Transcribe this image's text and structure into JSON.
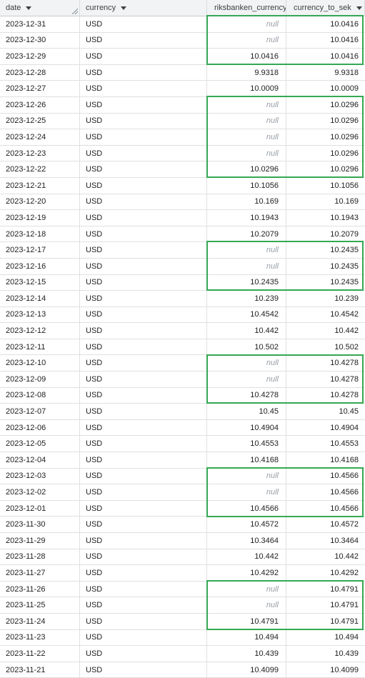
{
  "columns": {
    "date": "date",
    "currency": "currency",
    "riksbanken": "riksbanken_currency",
    "to_sek": "currency_to_sek"
  },
  "null_text": "null",
  "rows": [
    {
      "date": "2023-12-31",
      "currency": "USD",
      "riksbanken": null,
      "to_sek": "10.0416"
    },
    {
      "date": "2023-12-30",
      "currency": "USD",
      "riksbanken": null,
      "to_sek": "10.0416"
    },
    {
      "date": "2023-12-29",
      "currency": "USD",
      "riksbanken": "10.0416",
      "to_sek": "10.0416"
    },
    {
      "date": "2023-12-28",
      "currency": "USD",
      "riksbanken": "9.9318",
      "to_sek": "9.9318"
    },
    {
      "date": "2023-12-27",
      "currency": "USD",
      "riksbanken": "10.0009",
      "to_sek": "10.0009"
    },
    {
      "date": "2023-12-26",
      "currency": "USD",
      "riksbanken": null,
      "to_sek": "10.0296"
    },
    {
      "date": "2023-12-25",
      "currency": "USD",
      "riksbanken": null,
      "to_sek": "10.0296"
    },
    {
      "date": "2023-12-24",
      "currency": "USD",
      "riksbanken": null,
      "to_sek": "10.0296"
    },
    {
      "date": "2023-12-23",
      "currency": "USD",
      "riksbanken": null,
      "to_sek": "10.0296"
    },
    {
      "date": "2023-12-22",
      "currency": "USD",
      "riksbanken": "10.0296",
      "to_sek": "10.0296"
    },
    {
      "date": "2023-12-21",
      "currency": "USD",
      "riksbanken": "10.1056",
      "to_sek": "10.1056"
    },
    {
      "date": "2023-12-20",
      "currency": "USD",
      "riksbanken": "10.169",
      "to_sek": "10.169"
    },
    {
      "date": "2023-12-19",
      "currency": "USD",
      "riksbanken": "10.1943",
      "to_sek": "10.1943"
    },
    {
      "date": "2023-12-18",
      "currency": "USD",
      "riksbanken": "10.2079",
      "to_sek": "10.2079"
    },
    {
      "date": "2023-12-17",
      "currency": "USD",
      "riksbanken": null,
      "to_sek": "10.2435"
    },
    {
      "date": "2023-12-16",
      "currency": "USD",
      "riksbanken": null,
      "to_sek": "10.2435"
    },
    {
      "date": "2023-12-15",
      "currency": "USD",
      "riksbanken": "10.2435",
      "to_sek": "10.2435"
    },
    {
      "date": "2023-12-14",
      "currency": "USD",
      "riksbanken": "10.239",
      "to_sek": "10.239"
    },
    {
      "date": "2023-12-13",
      "currency": "USD",
      "riksbanken": "10.4542",
      "to_sek": "10.4542"
    },
    {
      "date": "2023-12-12",
      "currency": "USD",
      "riksbanken": "10.442",
      "to_sek": "10.442"
    },
    {
      "date": "2023-12-11",
      "currency": "USD",
      "riksbanken": "10.502",
      "to_sek": "10.502"
    },
    {
      "date": "2023-12-10",
      "currency": "USD",
      "riksbanken": null,
      "to_sek": "10.4278"
    },
    {
      "date": "2023-12-09",
      "currency": "USD",
      "riksbanken": null,
      "to_sek": "10.4278"
    },
    {
      "date": "2023-12-08",
      "currency": "USD",
      "riksbanken": "10.4278",
      "to_sek": "10.4278"
    },
    {
      "date": "2023-12-07",
      "currency": "USD",
      "riksbanken": "10.45",
      "to_sek": "10.45"
    },
    {
      "date": "2023-12-06",
      "currency": "USD",
      "riksbanken": "10.4904",
      "to_sek": "10.4904"
    },
    {
      "date": "2023-12-05",
      "currency": "USD",
      "riksbanken": "10.4553",
      "to_sek": "10.4553"
    },
    {
      "date": "2023-12-04",
      "currency": "USD",
      "riksbanken": "10.4168",
      "to_sek": "10.4168"
    },
    {
      "date": "2023-12-03",
      "currency": "USD",
      "riksbanken": null,
      "to_sek": "10.4566"
    },
    {
      "date": "2023-12-02",
      "currency": "USD",
      "riksbanken": null,
      "to_sek": "10.4566"
    },
    {
      "date": "2023-12-01",
      "currency": "USD",
      "riksbanken": "10.4566",
      "to_sek": "10.4566"
    },
    {
      "date": "2023-11-30",
      "currency": "USD",
      "riksbanken": "10.4572",
      "to_sek": "10.4572"
    },
    {
      "date": "2023-11-29",
      "currency": "USD",
      "riksbanken": "10.3464",
      "to_sek": "10.3464"
    },
    {
      "date": "2023-11-28",
      "currency": "USD",
      "riksbanken": "10.442",
      "to_sek": "10.442"
    },
    {
      "date": "2023-11-27",
      "currency": "USD",
      "riksbanken": "10.4292",
      "to_sek": "10.4292"
    },
    {
      "date": "2023-11-26",
      "currency": "USD",
      "riksbanken": null,
      "to_sek": "10.4791"
    },
    {
      "date": "2023-11-25",
      "currency": "USD",
      "riksbanken": null,
      "to_sek": "10.4791"
    },
    {
      "date": "2023-11-24",
      "currency": "USD",
      "riksbanken": "10.4791",
      "to_sek": "10.4791"
    },
    {
      "date": "2023-11-23",
      "currency": "USD",
      "riksbanken": "10.494",
      "to_sek": "10.494"
    },
    {
      "date": "2023-11-22",
      "currency": "USD",
      "riksbanken": "10.439",
      "to_sek": "10.439"
    },
    {
      "date": "2023-11-21",
      "currency": "USD",
      "riksbanken": "10.4099",
      "to_sek": "10.4099"
    }
  ],
  "highlights": [
    {
      "first_row": 0,
      "last_row": 2
    },
    {
      "first_row": 5,
      "last_row": 9
    },
    {
      "first_row": 14,
      "last_row": 16
    },
    {
      "first_row": 21,
      "last_row": 23
    },
    {
      "first_row": 28,
      "last_row": 30
    },
    {
      "first_row": 35,
      "last_row": 37
    }
  ],
  "colors": {
    "highlight": "#34a853",
    "null_text": "#9aa0a6"
  }
}
